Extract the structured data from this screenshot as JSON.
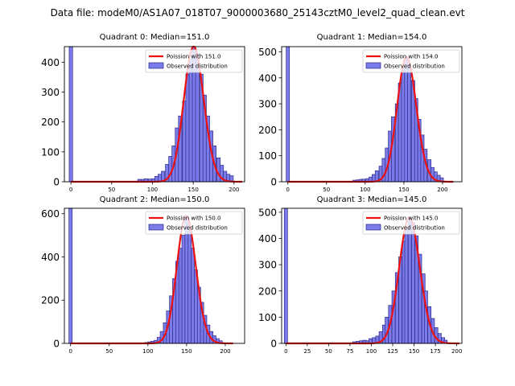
{
  "figure": {
    "suptitle": "Data file: modeM0/AS1A07_018T07_9000003680_25143cztM0_level2_quad_clean.evt"
  },
  "colors": {
    "bar_fill": "#7b7bea",
    "bar_edge": "#2c2c8a",
    "curve": "#ee1111",
    "axis": "#000000"
  },
  "chart_data": [
    {
      "type": "bar",
      "title": "Quadrant 0: Median=151.0",
      "xlim": [
        -8,
        213
      ],
      "ylim": [
        0,
        452
      ],
      "xticks": [
        0,
        50,
        100,
        150,
        200
      ],
      "yticks": [
        0,
        100,
        200,
        300,
        400
      ],
      "bin_width": 4.2,
      "zero_bar": {
        "x": 0,
        "value": 452
      },
      "bins": [
        {
          "x": 84,
          "value": 8
        },
        {
          "x": 88,
          "value": 8
        },
        {
          "x": 92,
          "value": 10
        },
        {
          "x": 97,
          "value": 9
        },
        {
          "x": 101,
          "value": 10
        },
        {
          "x": 105,
          "value": 18
        },
        {
          "x": 109,
          "value": 25
        },
        {
          "x": 113,
          "value": 35
        },
        {
          "x": 118,
          "value": 58
        },
        {
          "x": 122,
          "value": 85
        },
        {
          "x": 126,
          "value": 120
        },
        {
          "x": 130,
          "value": 180
        },
        {
          "x": 134,
          "value": 220
        },
        {
          "x": 139,
          "value": 270
        },
        {
          "x": 143,
          "value": 360
        },
        {
          "x": 147,
          "value": 410
        },
        {
          "x": 151,
          "value": 452
        },
        {
          "x": 155,
          "value": 430
        },
        {
          "x": 160,
          "value": 360
        },
        {
          "x": 164,
          "value": 290
        },
        {
          "x": 168,
          "value": 220
        },
        {
          "x": 172,
          "value": 170
        },
        {
          "x": 176,
          "value": 120
        },
        {
          "x": 181,
          "value": 80
        },
        {
          "x": 185,
          "value": 55
        },
        {
          "x": 189,
          "value": 35
        },
        {
          "x": 193,
          "value": 25
        },
        {
          "x": 197,
          "value": 20
        }
      ],
      "poisson": {
        "mean": 151.0,
        "label": "Poission with 151.0",
        "scale": 5.8
      },
      "legend": [
        "Poission with 151.0",
        "Observed distribution"
      ]
    },
    {
      "type": "bar",
      "title": "Quadrant 1: Median=154.0",
      "xlim": [
        -8,
        225
      ],
      "ylim": [
        0,
        520
      ],
      "xticks": [
        0,
        50,
        100,
        150,
        200
      ],
      "yticks": [
        0,
        100,
        200,
        300,
        400,
        500
      ],
      "bin_width": 4.2,
      "zero_bar": {
        "x": 0,
        "value": 520
      },
      "bins": [
        {
          "x": 86,
          "value": 6
        },
        {
          "x": 90,
          "value": 7
        },
        {
          "x": 94,
          "value": 9
        },
        {
          "x": 98,
          "value": 10
        },
        {
          "x": 103,
          "value": 12
        },
        {
          "x": 107,
          "value": 18
        },
        {
          "x": 111,
          "value": 28
        },
        {
          "x": 115,
          "value": 42
        },
        {
          "x": 120,
          "value": 60
        },
        {
          "x": 124,
          "value": 90
        },
        {
          "x": 128,
          "value": 130
        },
        {
          "x": 132,
          "value": 195
        },
        {
          "x": 136,
          "value": 250
        },
        {
          "x": 141,
          "value": 300
        },
        {
          "x": 145,
          "value": 380
        },
        {
          "x": 149,
          "value": 440
        },
        {
          "x": 153,
          "value": 480
        },
        {
          "x": 157,
          "value": 450
        },
        {
          "x": 162,
          "value": 390
        },
        {
          "x": 166,
          "value": 320
        },
        {
          "x": 170,
          "value": 240
        },
        {
          "x": 174,
          "value": 180
        },
        {
          "x": 178,
          "value": 125
        },
        {
          "x": 183,
          "value": 85
        },
        {
          "x": 187,
          "value": 55
        },
        {
          "x": 191,
          "value": 38
        },
        {
          "x": 195,
          "value": 25
        },
        {
          "x": 199,
          "value": 15
        }
      ],
      "poisson": {
        "mean": 154.0,
        "label": "Poission with 154.0",
        "scale": 6.1
      },
      "legend": [
        "Poission with 154.0",
        "Observed distribution"
      ]
    },
    {
      "type": "bar",
      "title": "Quadrant 2: Median=150.0",
      "xlim": [
        -8,
        225
      ],
      "ylim": [
        0,
        625
      ],
      "xticks": [
        0,
        50,
        100,
        150,
        200
      ],
      "yticks": [
        0,
        200,
        400,
        600
      ],
      "bin_width": 4.2,
      "zero_bar": {
        "x": 0,
        "value": 625
      },
      "bins": [
        {
          "x": 98,
          "value": 4
        },
        {
          "x": 102,
          "value": 7
        },
        {
          "x": 106,
          "value": 10
        },
        {
          "x": 110,
          "value": 14
        },
        {
          "x": 114,
          "value": 28
        },
        {
          "x": 118,
          "value": 55
        },
        {
          "x": 122,
          "value": 95
        },
        {
          "x": 126,
          "value": 150
        },
        {
          "x": 130,
          "value": 220
        },
        {
          "x": 134,
          "value": 300
        },
        {
          "x": 138,
          "value": 380
        },
        {
          "x": 142,
          "value": 440
        },
        {
          "x": 146,
          "value": 500
        },
        {
          "x": 150,
          "value": 590
        },
        {
          "x": 154,
          "value": 540
        },
        {
          "x": 158,
          "value": 440
        },
        {
          "x": 162,
          "value": 340
        },
        {
          "x": 166,
          "value": 260
        },
        {
          "x": 170,
          "value": 190
        },
        {
          "x": 174,
          "value": 130
        },
        {
          "x": 178,
          "value": 85
        },
        {
          "x": 182,
          "value": 55
        },
        {
          "x": 186,
          "value": 35
        },
        {
          "x": 190,
          "value": 22
        },
        {
          "x": 194,
          "value": 12
        }
      ],
      "poisson": {
        "mean": 150.0,
        "label": "Poission with 150.0",
        "scale": 7.3
      },
      "legend": [
        "Poission with 150.0",
        "Observed distribution"
      ]
    },
    {
      "type": "bar",
      "title": "Quadrant 3: Median=145.0",
      "xlim": [
        -5,
        206
      ],
      "ylim": [
        0,
        515
      ],
      "xticks": [
        0,
        25,
        50,
        75,
        100,
        125,
        150,
        175,
        200
      ],
      "yticks": [
        0,
        100,
        200,
        300,
        400,
        500
      ],
      "bin_width": 3.8,
      "zero_bar": {
        "x": 0,
        "value": 515
      },
      "bins": [
        {
          "x": 80,
          "value": 6
        },
        {
          "x": 84,
          "value": 8
        },
        {
          "x": 88,
          "value": 10
        },
        {
          "x": 92,
          "value": 12
        },
        {
          "x": 95,
          "value": 10
        },
        {
          "x": 99,
          "value": 18
        },
        {
          "x": 103,
          "value": 22
        },
        {
          "x": 107,
          "value": 28
        },
        {
          "x": 111,
          "value": 45
        },
        {
          "x": 115,
          "value": 70
        },
        {
          "x": 118,
          "value": 100
        },
        {
          "x": 122,
          "value": 145
        },
        {
          "x": 126,
          "value": 200
        },
        {
          "x": 130,
          "value": 270
        },
        {
          "x": 134,
          "value": 330
        },
        {
          "x": 138,
          "value": 390
        },
        {
          "x": 141,
          "value": 440
        },
        {
          "x": 145,
          "value": 480
        },
        {
          "x": 149,
          "value": 460
        },
        {
          "x": 153,
          "value": 410
        },
        {
          "x": 157,
          "value": 340
        },
        {
          "x": 161,
          "value": 265
        },
        {
          "x": 164,
          "value": 200
        },
        {
          "x": 168,
          "value": 140
        },
        {
          "x": 172,
          "value": 95
        },
        {
          "x": 176,
          "value": 60
        },
        {
          "x": 180,
          "value": 38
        },
        {
          "x": 184,
          "value": 22
        },
        {
          "x": 187,
          "value": 12
        }
      ],
      "poisson": {
        "mean": 145.0,
        "label": "Poission with 145.0",
        "scale": 5.8
      },
      "legend": [
        "Poission with 145.0",
        "Observed distribution"
      ]
    }
  ]
}
